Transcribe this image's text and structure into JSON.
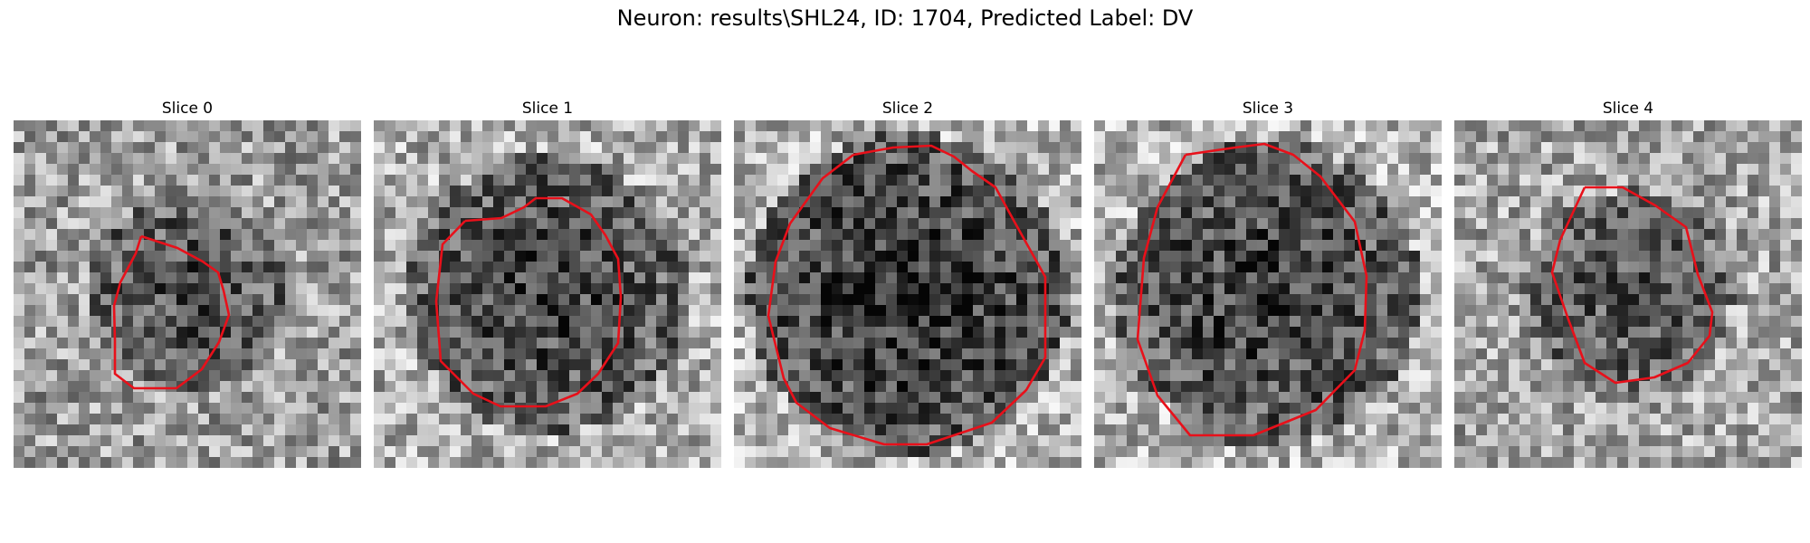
{
  "figure": {
    "title": "Neuron: results\\SHL24, ID: 1704, Predicted Label: DV",
    "contour_color": "#e8101a",
    "panels": [
      {
        "title": "Slice 0",
        "brightness": 0.62,
        "blob_strength": 0.35,
        "blob_radius": 0.28,
        "seed": 11
      },
      {
        "title": "Slice 1",
        "brightness": 0.68,
        "blob_strength": 0.45,
        "blob_radius": 0.4,
        "seed": 23
      },
      {
        "title": "Slice 2",
        "brightness": 0.7,
        "blob_strength": 0.55,
        "blob_radius": 0.46,
        "seed": 37
      },
      {
        "title": "Slice 3",
        "brightness": 0.7,
        "blob_strength": 0.5,
        "blob_radius": 0.44,
        "seed": 41
      },
      {
        "title": "Slice 4",
        "brightness": 0.65,
        "blob_strength": 0.35,
        "blob_radius": 0.3,
        "seed": 53
      }
    ]
  }
}
